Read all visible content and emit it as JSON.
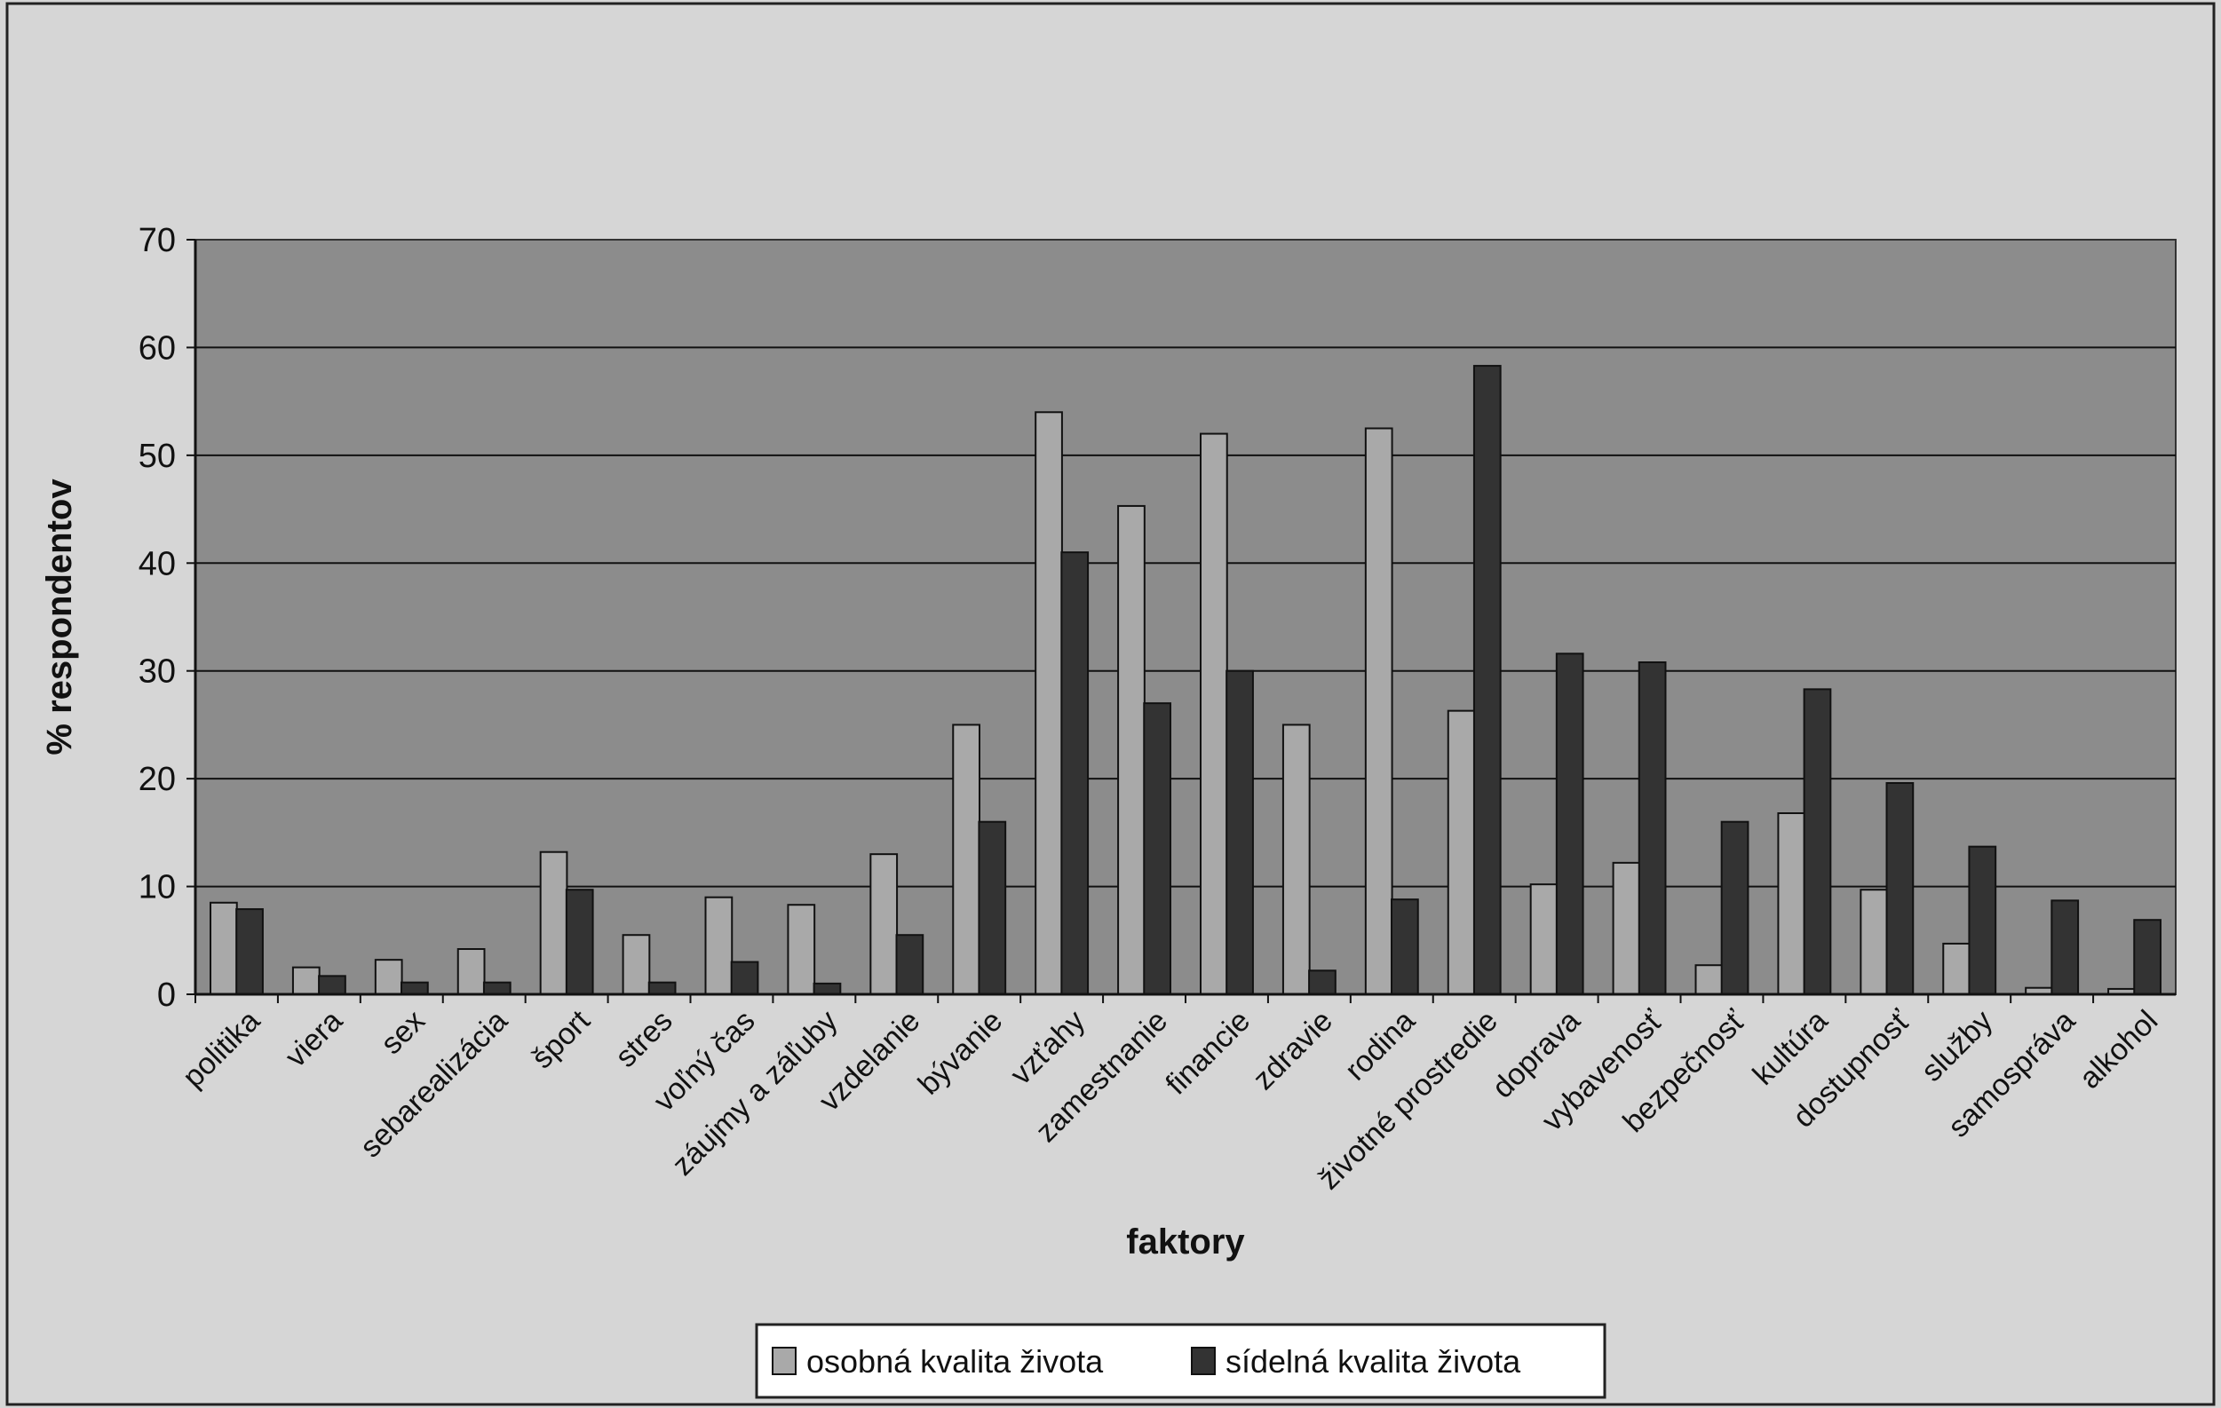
{
  "chart_data": {
    "type": "bar",
    "xlabel": "faktory",
    "ylabel": "% respondentov",
    "ylim": [
      0,
      70
    ],
    "yticks": [
      0,
      10,
      20,
      30,
      40,
      50,
      60,
      70
    ],
    "grid": true,
    "legend_position": "bottom",
    "categories": [
      "politika",
      "viera",
      "sex",
      "sebarealizácia",
      "šport",
      "stres",
      "voľný čas",
      "záujmy a záľuby",
      "vzdelanie",
      "bývanie",
      "vzťahy",
      "zamestnanie",
      "financie",
      "zdravie",
      "rodina",
      "životné prostredie",
      "doprava",
      "vybavenosť",
      "bezpečnosť",
      "kultúra",
      "dostupnosť",
      "služby",
      "samospráva",
      "alkohol"
    ],
    "series": [
      {
        "name": "osobná kvalita života",
        "color": "#a9a9a9",
        "values": [
          8.5,
          2.5,
          3.2,
          4.2,
          13.2,
          5.5,
          9.0,
          8.3,
          13.0,
          25.0,
          54.0,
          45.3,
          52.0,
          25.0,
          52.5,
          26.3,
          10.2,
          12.2,
          2.7,
          16.8,
          9.7,
          4.7,
          0.6,
          0.5
        ]
      },
      {
        "name": "sídelná kvalita života",
        "color": "#333333",
        "values": [
          7.9,
          1.7,
          1.1,
          1.1,
          9.7,
          1.1,
          3.0,
          1.0,
          5.5,
          16.0,
          41.0,
          27.0,
          30.0,
          2.2,
          8.8,
          58.3,
          31.6,
          30.8,
          16.0,
          28.3,
          19.6,
          13.7,
          8.7,
          6.9
        ]
      }
    ]
  }
}
